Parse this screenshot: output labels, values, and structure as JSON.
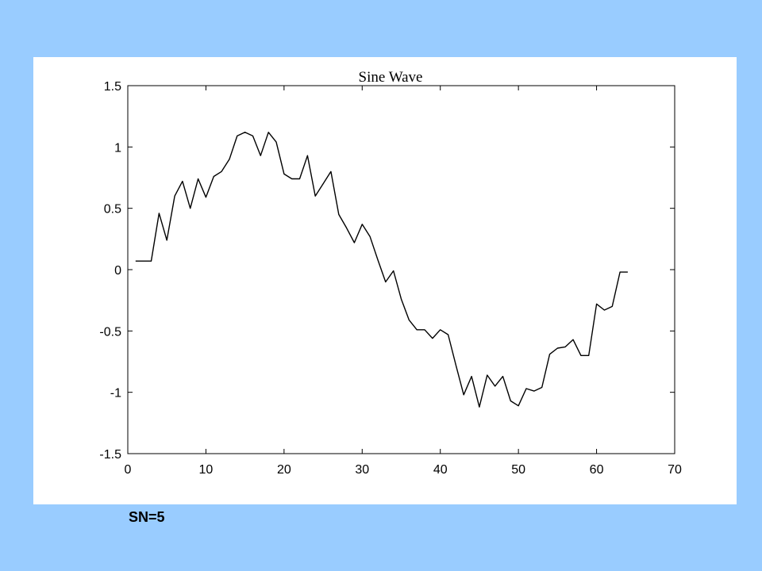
{
  "caption": "SN=5",
  "chart_data": {
    "type": "line",
    "title": "Sine Wave",
    "xlabel": "",
    "ylabel": "",
    "xlim": [
      0,
      70
    ],
    "ylim": [
      -1.5,
      1.5
    ],
    "xticks": [
      0,
      10,
      20,
      30,
      40,
      50,
      60,
      70
    ],
    "yticks": [
      -1.5,
      -1,
      -0.5,
      0,
      0.5,
      1,
      1.5
    ],
    "xtick_labels": [
      "0",
      "10",
      "20",
      "30",
      "40",
      "50",
      "60",
      "70"
    ],
    "ytick_labels": [
      "-1.5",
      "-1",
      "-0.5",
      "0",
      "0.5",
      "1",
      "1.5"
    ],
    "grid": false,
    "line_color": "#000000",
    "series": [
      {
        "x": [
          1,
          2,
          3,
          4,
          5,
          6,
          7,
          8,
          9,
          10,
          11,
          12,
          13,
          14,
          15,
          16,
          17,
          18,
          19,
          20,
          21,
          22,
          23,
          24,
          25,
          26,
          27,
          28,
          29,
          30,
          31,
          32,
          33,
          34,
          35,
          36,
          37,
          38,
          39,
          40,
          41,
          42,
          43,
          44,
          45,
          46,
          47,
          48,
          49,
          50,
          51,
          52,
          53,
          54,
          55,
          56,
          57,
          58,
          59,
          60,
          61,
          62,
          63,
          64
        ],
        "y": [
          0.07,
          0.07,
          0.07,
          0.46,
          0.24,
          0.6,
          0.72,
          0.5,
          0.74,
          0.59,
          0.76,
          0.8,
          0.9,
          1.09,
          1.12,
          1.09,
          0.93,
          1.12,
          1.04,
          0.78,
          0.74,
          0.74,
          0.93,
          0.6,
          0.7,
          0.8,
          0.45,
          0.34,
          0.22,
          0.37,
          0.27,
          0.08,
          -0.1,
          -0.01,
          -0.24,
          -0.41,
          -0.49,
          -0.49,
          -0.56,
          -0.49,
          -0.53,
          -0.78,
          -1.02,
          -0.87,
          -1.12,
          -0.86,
          -0.95,
          -0.87,
          -1.07,
          -1.11,
          -0.97,
          -0.99,
          -0.96,
          -0.69,
          -0.64,
          -0.63,
          -0.57,
          -0.7,
          -0.7,
          -0.28,
          -0.33,
          -0.3,
          -0.02,
          -0.02
        ]
      }
    ]
  }
}
